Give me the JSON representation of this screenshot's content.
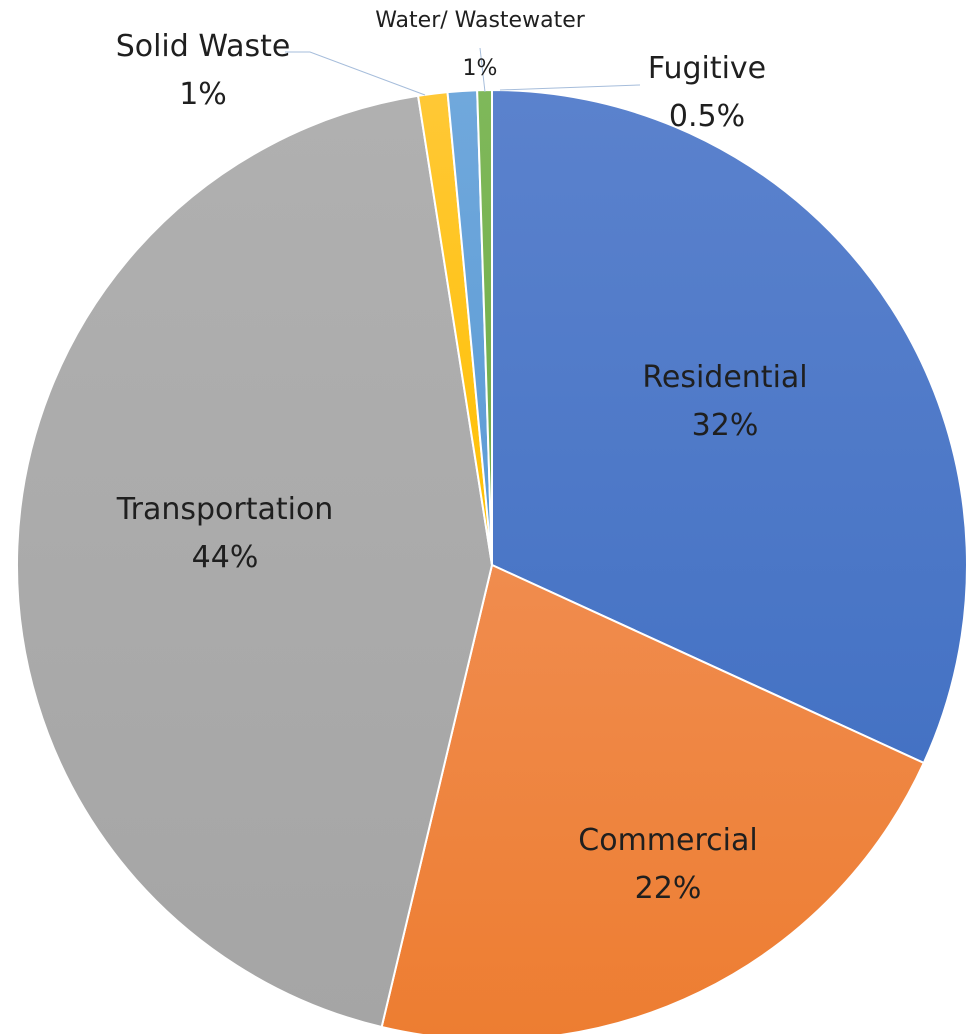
{
  "chart_data": {
    "type": "pie",
    "title": "",
    "start_angle_deg": 0,
    "direction": "clockwise",
    "slices": [
      {
        "name": "Residential",
        "value": 32,
        "label": "32%",
        "color": "#4472c4",
        "color_light": "#5b82cd"
      },
      {
        "name": "Commercial",
        "value": 22,
        "label": "22%",
        "color": "#ed7d31",
        "color_light": "#f08c4e"
      },
      {
        "name": "Transportation",
        "value": 44,
        "label": "44%",
        "color": "#a5a5a5",
        "color_light": "#b0b0b0"
      },
      {
        "name": "Solid Waste",
        "value": 1,
        "label": "1%",
        "color": "#ffc000",
        "color_light": "#ffc836"
      },
      {
        "name": "Water/ Wastewater",
        "value": 1,
        "label": "1%",
        "color": "#5b9bd5",
        "color_light": "#70a8dc"
      },
      {
        "name": "Fugitive",
        "value": 0.5,
        "label": "0.5%",
        "color": "#70ad47",
        "color_light": "#7fb85a"
      }
    ]
  }
}
